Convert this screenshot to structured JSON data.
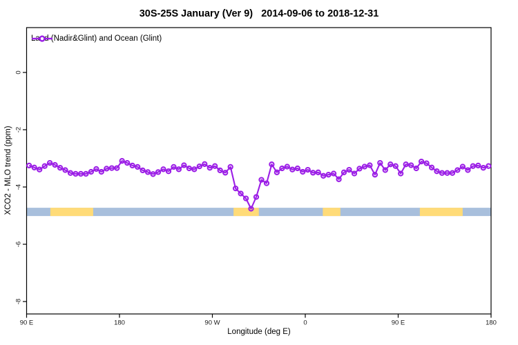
{
  "chart_data": {
    "type": "line",
    "title": "30S-25S January (Ver 9)   2014-09-06 to 2018-12-31",
    "xlabel": "Longitude (deg E)",
    "ylabel": "XCO2 - MLO trend (ppm)",
    "grid": false,
    "legend_position": "top-left-inside",
    "xlim": [
      90,
      540
    ],
    "ylim": [
      -8.45,
      1.55
    ],
    "x_ticks": [
      {
        "pos": 90,
        "label": "90 E"
      },
      {
        "pos": 180,
        "label": "180"
      },
      {
        "pos": 270,
        "label": "90 W"
      },
      {
        "pos": 360,
        "label": "0"
      },
      {
        "pos": 450,
        "label": "90 E"
      },
      {
        "pos": 540,
        "label": "180"
      }
    ],
    "y_ticks": [
      {
        "pos": 0,
        "label": "0"
      },
      {
        "pos": -2,
        "label": "-2"
      },
      {
        "pos": -4,
        "label": "-4"
      },
      {
        "pos": -6,
        "label": "-6"
      },
      {
        "pos": -8,
        "label": "-8"
      }
    ],
    "series": [
      {
        "name": "Land (Nadir&Glint) and Ocean (Glint)",
        "color": "#9B1EE6",
        "marker": "open-circle",
        "x": [
          92.5,
          97.5,
          102.5,
          107.5,
          112.5,
          117.5,
          122.5,
          127.5,
          132.5,
          137.5,
          142.5,
          147.5,
          152.5,
          157.5,
          162.5,
          167.5,
          172.5,
          177.5,
          182.5,
          187.5,
          192.5,
          197.5,
          202.5,
          207.5,
          212.5,
          217.5,
          222.5,
          227.5,
          232.5,
          237.5,
          242.5,
          247.5,
          252.5,
          257.5,
          262.5,
          267.5,
          272.5,
          277.5,
          282.5,
          287.5,
          292.5,
          297.5,
          302.5,
          307.5,
          312.5,
          317.5,
          322.5,
          327.5,
          332.5,
          337.5,
          342.5,
          347.5,
          352.5,
          357.5,
          362.5,
          367.5,
          372.5,
          377.5,
          382.5,
          387.5,
          392.5,
          397.5,
          402.5,
          407.5,
          412.5,
          417.5,
          422.5,
          427.5,
          432.5,
          437.5,
          442.5,
          447.5,
          452.5,
          457.5,
          462.5,
          467.5,
          472.5,
          477.5,
          482.5,
          487.5,
          492.5,
          497.5,
          502.5,
          507.5,
          512.5,
          517.5,
          522.5,
          527.5,
          532.5,
          537.5
        ],
        "values": [
          -3.25,
          -3.32,
          -3.39,
          -3.27,
          -3.16,
          -3.23,
          -3.33,
          -3.41,
          -3.51,
          -3.54,
          -3.54,
          -3.54,
          -3.47,
          -3.37,
          -3.47,
          -3.36,
          -3.34,
          -3.34,
          -3.09,
          -3.16,
          -3.25,
          -3.3,
          -3.42,
          -3.48,
          -3.55,
          -3.48,
          -3.38,
          -3.45,
          -3.3,
          -3.38,
          -3.24,
          -3.35,
          -3.38,
          -3.28,
          -3.2,
          -3.33,
          -3.27,
          -3.42,
          -3.5,
          -3.3,
          -4.05,
          -4.23,
          -4.4,
          -4.76,
          -4.35,
          -3.75,
          -3.87,
          -3.21,
          -3.49,
          -3.35,
          -3.29,
          -3.39,
          -3.35,
          -3.47,
          -3.4,
          -3.5,
          -3.49,
          -3.61,
          -3.57,
          -3.53,
          -3.73,
          -3.49,
          -3.4,
          -3.53,
          -3.36,
          -3.29,
          -3.24,
          -3.57,
          -3.16,
          -3.41,
          -3.21,
          -3.27,
          -3.53,
          -3.21,
          -3.24,
          -3.35,
          -3.11,
          -3.17,
          -3.32,
          -3.45,
          -3.51,
          -3.51,
          -3.51,
          -3.41,
          -3.29,
          -3.41,
          -3.27,
          -3.25,
          -3.33,
          -3.27
        ]
      }
    ],
    "surface_band": {
      "description": "land/ocean indicator strip along longitude",
      "y_center": -4.87,
      "ocean_color": "#A8BFDC",
      "land_color": "#FFDB78",
      "land_segments_lon": [
        [
          113,
          154.5
        ],
        [
          290.5,
          315
        ],
        [
          377,
          394
        ],
        [
          471,
          512.5
        ]
      ]
    }
  },
  "colors": {
    "series_purple": "#9B1EE6",
    "band_ocean_blue": "#A8BFDC",
    "band_land_yellow": "#FFDB78",
    "axis_black": "#000000"
  }
}
